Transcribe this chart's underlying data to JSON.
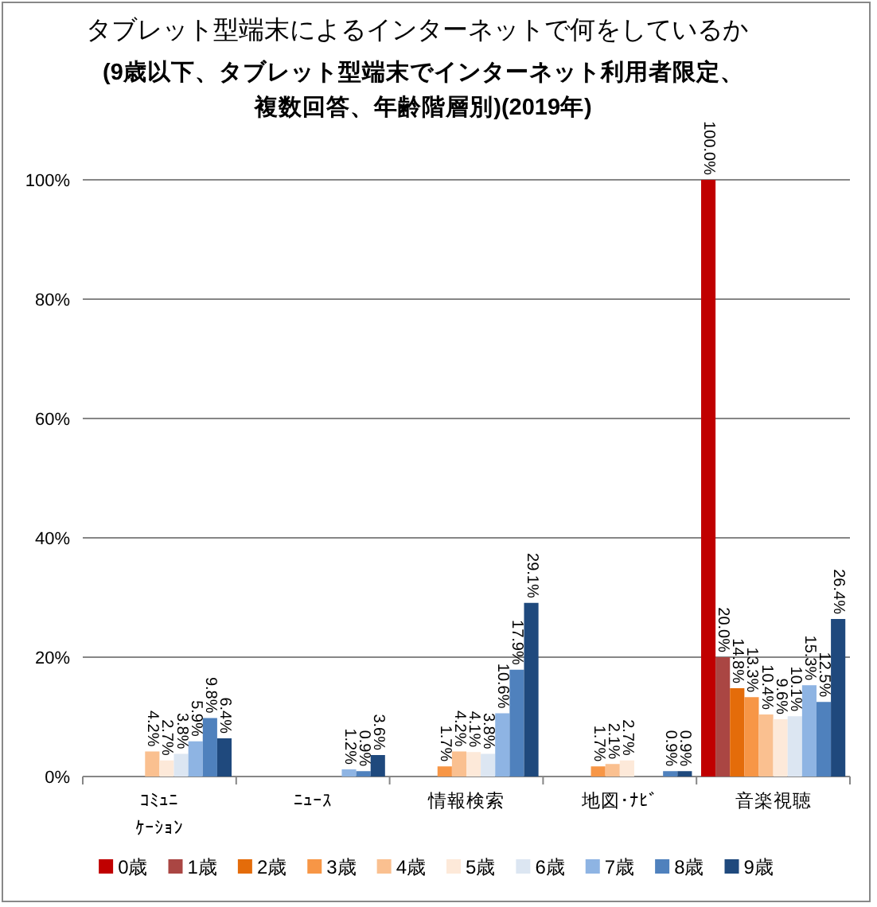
{
  "chart_data": {
    "type": "bar",
    "title": "タブレット型端末によるインターネットで何をしているか",
    "subtitle": "(9歳以下、タブレット型端末でインターネット利用者限定、複数回答、年齢階層別)(2019年)",
    "categories": [
      "ｺﾐｭﾆｹｰｼｮﾝ",
      "ﾆｭｰｽ",
      "情報検索",
      "地図･ﾅﾋﾞ",
      "音楽視聴"
    ],
    "ylim": [
      0,
      100
    ],
    "yticks": [
      {
        "value": 0,
        "label": "0%"
      },
      {
        "value": 20,
        "label": "20%"
      },
      {
        "value": 40,
        "label": "40%"
      },
      {
        "value": 60,
        "label": "60%"
      },
      {
        "value": 80,
        "label": "80%"
      },
      {
        "value": 100,
        "label": "100%"
      }
    ],
    "grid": "y",
    "legend": "bottom",
    "series": [
      {
        "name": "0歳",
        "color": "#c00000",
        "values": [
          null,
          null,
          null,
          null,
          100.0
        ],
        "value_labels": [
          null,
          null,
          null,
          null,
          "100.0%"
        ]
      },
      {
        "name": "1歳",
        "color": "#aa4643",
        "values": [
          null,
          null,
          null,
          null,
          20.0
        ],
        "value_labels": [
          null,
          null,
          null,
          null,
          "20.0%"
        ]
      },
      {
        "name": "2歳",
        "color": "#e46c0a",
        "values": [
          null,
          null,
          null,
          null,
          14.8
        ],
        "value_labels": [
          null,
          null,
          null,
          null,
          "14.8%"
        ]
      },
      {
        "name": "3歳",
        "color": "#f79646",
        "values": [
          null,
          null,
          1.7,
          1.7,
          13.3
        ],
        "value_labels": [
          null,
          null,
          "1.7%",
          "1.7%",
          "13.3%"
        ]
      },
      {
        "name": "4歳",
        "color": "#fac090",
        "values": [
          4.2,
          null,
          4.2,
          2.1,
          10.4
        ],
        "value_labels": [
          "4.2%",
          null,
          "4.2%",
          "2.1%",
          "10.4%"
        ]
      },
      {
        "name": "5歳",
        "color": "#fde9d9",
        "values": [
          2.7,
          null,
          4.1,
          2.7,
          9.6
        ],
        "value_labels": [
          "2.7%",
          null,
          "4.1%",
          "2.7%",
          "9.6%"
        ]
      },
      {
        "name": "6歳",
        "color": "#dce6f2",
        "values": [
          3.8,
          null,
          3.8,
          null,
          10.1
        ],
        "value_labels": [
          "3.8%",
          null,
          "3.8%",
          null,
          "10.1%"
        ]
      },
      {
        "name": "7歳",
        "color": "#8eb4e3",
        "values": [
          5.9,
          1.2,
          10.6,
          null,
          15.3
        ],
        "value_labels": [
          "5.9%",
          "1.2%",
          "10.6%",
          null,
          "15.3%"
        ]
      },
      {
        "name": "8歳",
        "color": "#4f81bd",
        "values": [
          9.8,
          0.9,
          17.9,
          0.9,
          12.5
        ],
        "value_labels": [
          "9.8%",
          "0.9%",
          "17.9%",
          "0.9%",
          "12.5%"
        ]
      },
      {
        "name": "9歳",
        "color": "#1f497d",
        "values": [
          6.4,
          3.6,
          29.1,
          0.9,
          26.4
        ],
        "value_labels": [
          "6.4%",
          "3.6%",
          "29.1%",
          "0.9%",
          "26.4%"
        ]
      }
    ]
  }
}
